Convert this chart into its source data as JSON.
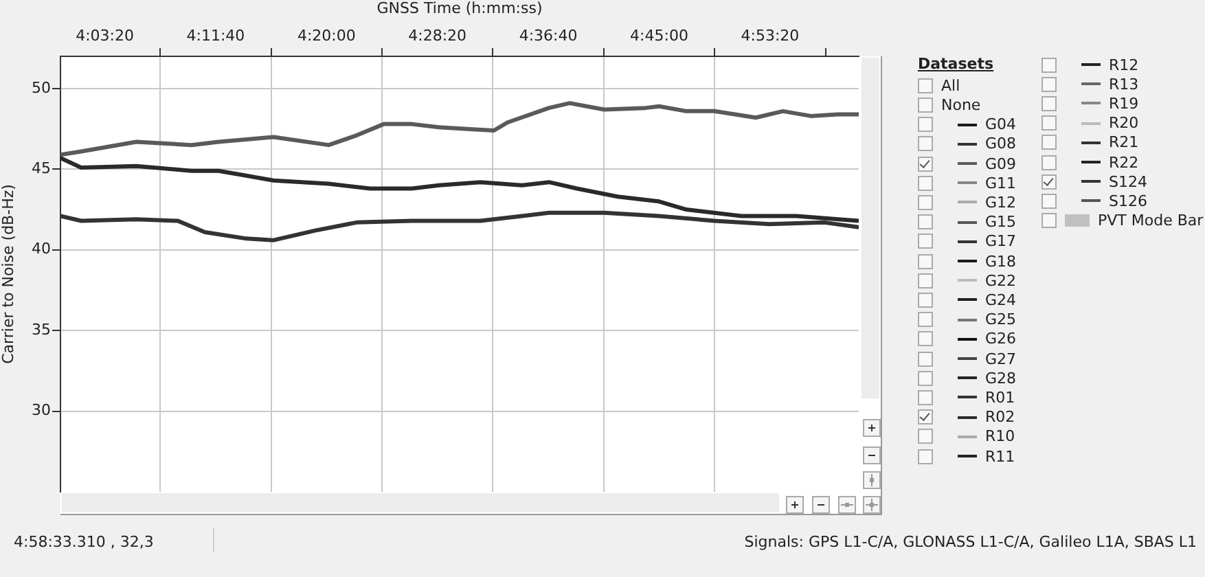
{
  "chart_data": {
    "type": "line",
    "xlabel": "GNSS Time (h:mm:ss)",
    "ylabel": "Carrier to Noise (dB-Hz)",
    "legend_title": "Datasets",
    "legend": "right",
    "grid": true,
    "xlim": [
      4.0,
      5.0
    ],
    "ylim": [
      25,
      52
    ],
    "xticks": [
      {
        "value": 4.0556,
        "label": "4:03:20"
      },
      {
        "value": 4.1944,
        "label": "4:11:40"
      },
      {
        "value": 4.3333,
        "label": "4:20:00"
      },
      {
        "value": 4.4722,
        "label": "4:28:20"
      },
      {
        "value": 4.6111,
        "label": "4:36:40"
      },
      {
        "value": 4.75,
        "label": "4:45:00"
      },
      {
        "value": 4.8889,
        "label": "4:53:20"
      }
    ],
    "yticks": [
      30,
      35,
      40,
      45,
      50
    ],
    "annotations": [
      "All",
      "None",
      "4:58:33.310 , 32,3",
      "Signals: GPS L1-C/A, GLONASS L1-C/A, Galileo L1A, SBAS L1"
    ],
    "series": [
      {
        "name": "G04",
        "color": "#1a1a1a"
      },
      {
        "name": "G08",
        "color": "#333333"
      },
      {
        "name": "G09",
        "color": "#5a5a5a",
        "x": [
          4.0,
          4.026,
          4.095,
          4.164,
          4.198,
          4.267,
          4.336,
          4.371,
          4.405,
          4.44,
          4.474,
          4.509,
          4.543,
          4.56,
          4.612,
          4.638,
          4.681,
          4.733,
          4.75,
          4.784,
          4.819,
          4.871,
          4.905,
          4.94,
          4.974,
          5.0
        ],
        "values": [
          45.9,
          46.1,
          46.7,
          46.5,
          46.7,
          47.0,
          46.5,
          47.1,
          47.8,
          47.8,
          47.6,
          47.5,
          47.4,
          47.9,
          48.8,
          49.1,
          48.7,
          48.8,
          48.9,
          48.6,
          48.6,
          48.2,
          48.6,
          48.3,
          48.4,
          48.4
        ]
      },
      {
        "name": "G11",
        "color": "#888888"
      },
      {
        "name": "G12",
        "color": "#aaaaaa"
      },
      {
        "name": "G15",
        "color": "#555555"
      },
      {
        "name": "G17",
        "color": "#333333"
      },
      {
        "name": "G18",
        "color": "#1a1a1a"
      },
      {
        "name": "G22",
        "color": "#bbbbbb"
      },
      {
        "name": "G24",
        "color": "#222222"
      },
      {
        "name": "G25",
        "color": "#777777"
      },
      {
        "name": "G26",
        "color": "#111111"
      },
      {
        "name": "G27",
        "color": "#444444"
      },
      {
        "name": "G28",
        "color": "#222222"
      },
      {
        "name": "R01",
        "color": "#333333"
      },
      {
        "name": "R02",
        "color": "#2a2a2a",
        "x": [
          4.0,
          4.026,
          4.095,
          4.164,
          4.198,
          4.233,
          4.267,
          4.336,
          4.388,
          4.44,
          4.474,
          4.526,
          4.578,
          4.612,
          4.647,
          4.698,
          4.75,
          4.784,
          4.853,
          4.922,
          5.0
        ],
        "values": [
          45.7,
          45.1,
          45.2,
          44.9,
          44.9,
          44.6,
          44.3,
          44.1,
          43.8,
          43.8,
          44.0,
          44.2,
          44.0,
          44.2,
          43.8,
          43.3,
          43.0,
          42.5,
          42.1,
          42.1,
          41.8
        ]
      },
      {
        "name": "R10",
        "color": "#aaaaaa"
      },
      {
        "name": "R11",
        "color": "#222222"
      },
      {
        "name": "R12",
        "color": "#222222"
      },
      {
        "name": "R13",
        "color": "#666666"
      },
      {
        "name": "R19",
        "color": "#888888"
      },
      {
        "name": "R20",
        "color": "#bbbbbb"
      },
      {
        "name": "R21",
        "color": "#333333"
      },
      {
        "name": "R22",
        "color": "#222222"
      },
      {
        "name": "S124",
        "color": "#333333",
        "x": [
          4.0,
          4.026,
          4.095,
          4.147,
          4.181,
          4.233,
          4.267,
          4.319,
          4.371,
          4.44,
          4.474,
          4.526,
          4.578,
          4.612,
          4.681,
          4.75,
          4.819,
          4.888,
          4.957,
          5.0
        ],
        "values": [
          42.1,
          41.8,
          41.9,
          41.8,
          41.1,
          40.7,
          40.6,
          41.2,
          41.7,
          41.8,
          41.8,
          41.8,
          42.1,
          42.3,
          42.3,
          42.1,
          41.8,
          41.6,
          41.7,
          41.4
        ]
      },
      {
        "name": "S126",
        "color": "#555555"
      },
      {
        "name": "PVT Mode Bar",
        "type": "bar",
        "color": "#c0c0c0"
      }
    ]
  }
}
